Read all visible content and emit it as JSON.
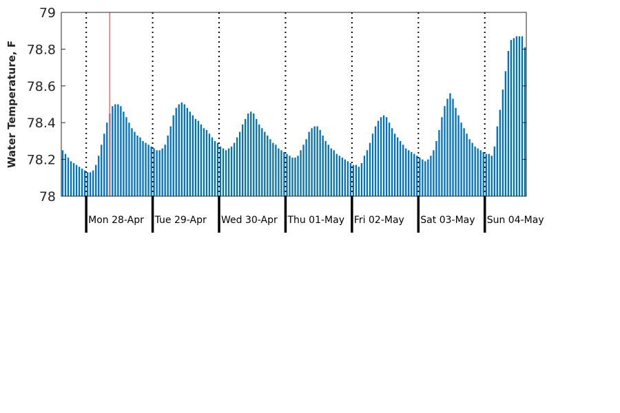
{
  "chart_data": {
    "type": "bar",
    "title": "",
    "xlabel": "",
    "ylabel": "Water Temperature, F",
    "ylim": [
      78,
      79
    ],
    "yticks": [
      "78",
      "78.2",
      "78.4",
      "78.6",
      "78.8",
      "79"
    ],
    "day_labels": [
      "Mon 28-Apr",
      "Tue 29-Apr",
      "Wed 30-Apr",
      "Thu 01-May",
      "Fri 02-May",
      "Sat 03-May",
      "Sun 04-May"
    ],
    "hours_before_first_day": 9,
    "marker_hour": 17,
    "grid": false,
    "colors": {
      "bar": "#0072bd",
      "marker": "#e8696e",
      "axis": "#262626",
      "divider": "#000000"
    },
    "series": [
      {
        "values": [
          78.25,
          78.23,
          78.21,
          78.19,
          78.18,
          78.17,
          78.16,
          78.15,
          78.14,
          78.13,
          78.13,
          78.14,
          78.17,
          78.22,
          78.28,
          78.34,
          78.4,
          78.45,
          78.49,
          78.5,
          78.5,
          78.49,
          78.46,
          78.43,
          78.4,
          78.37,
          78.35,
          78.33,
          78.32,
          78.3,
          78.29,
          78.28,
          78.27,
          78.26,
          78.25,
          78.25,
          78.26,
          78.28,
          78.33,
          78.38,
          78.44,
          78.48,
          78.5,
          78.51,
          78.5,
          78.48,
          78.46,
          78.44,
          78.42,
          78.41,
          78.39,
          78.37,
          78.36,
          78.34,
          78.32,
          78.3,
          78.29,
          78.27,
          78.26,
          78.25,
          78.26,
          78.27,
          78.29,
          78.32,
          78.35,
          78.39,
          78.42,
          78.45,
          78.46,
          78.45,
          78.42,
          78.39,
          78.37,
          78.35,
          78.33,
          78.31,
          78.29,
          78.28,
          78.26,
          78.25,
          78.24,
          78.23,
          78.22,
          78.21,
          78.21,
          78.22,
          78.25,
          78.28,
          78.31,
          78.35,
          78.37,
          78.38,
          78.38,
          78.36,
          78.33,
          78.3,
          78.28,
          78.26,
          78.25,
          78.23,
          78.22,
          78.21,
          78.2,
          78.19,
          78.18,
          78.17,
          78.17,
          78.16,
          78.18,
          78.22,
          78.25,
          78.29,
          78.34,
          78.38,
          78.41,
          78.43,
          78.44,
          78.43,
          78.4,
          78.37,
          78.34,
          78.32,
          78.3,
          78.28,
          78.26,
          78.25,
          78.24,
          78.23,
          78.22,
          78.21,
          78.2,
          78.19,
          78.2,
          78.22,
          78.25,
          78.3,
          78.36,
          78.43,
          78.49,
          78.53,
          78.56,
          78.53,
          78.48,
          78.44,
          78.4,
          78.37,
          78.34,
          78.31,
          78.29,
          78.27,
          78.26,
          78.25,
          78.24,
          78.23,
          78.23,
          78.22,
          78.27,
          78.38,
          78.47,
          78.58,
          78.68,
          78.79,
          78.85,
          78.86,
          78.87,
          78.87,
          78.87,
          78.81
        ]
      }
    ]
  }
}
